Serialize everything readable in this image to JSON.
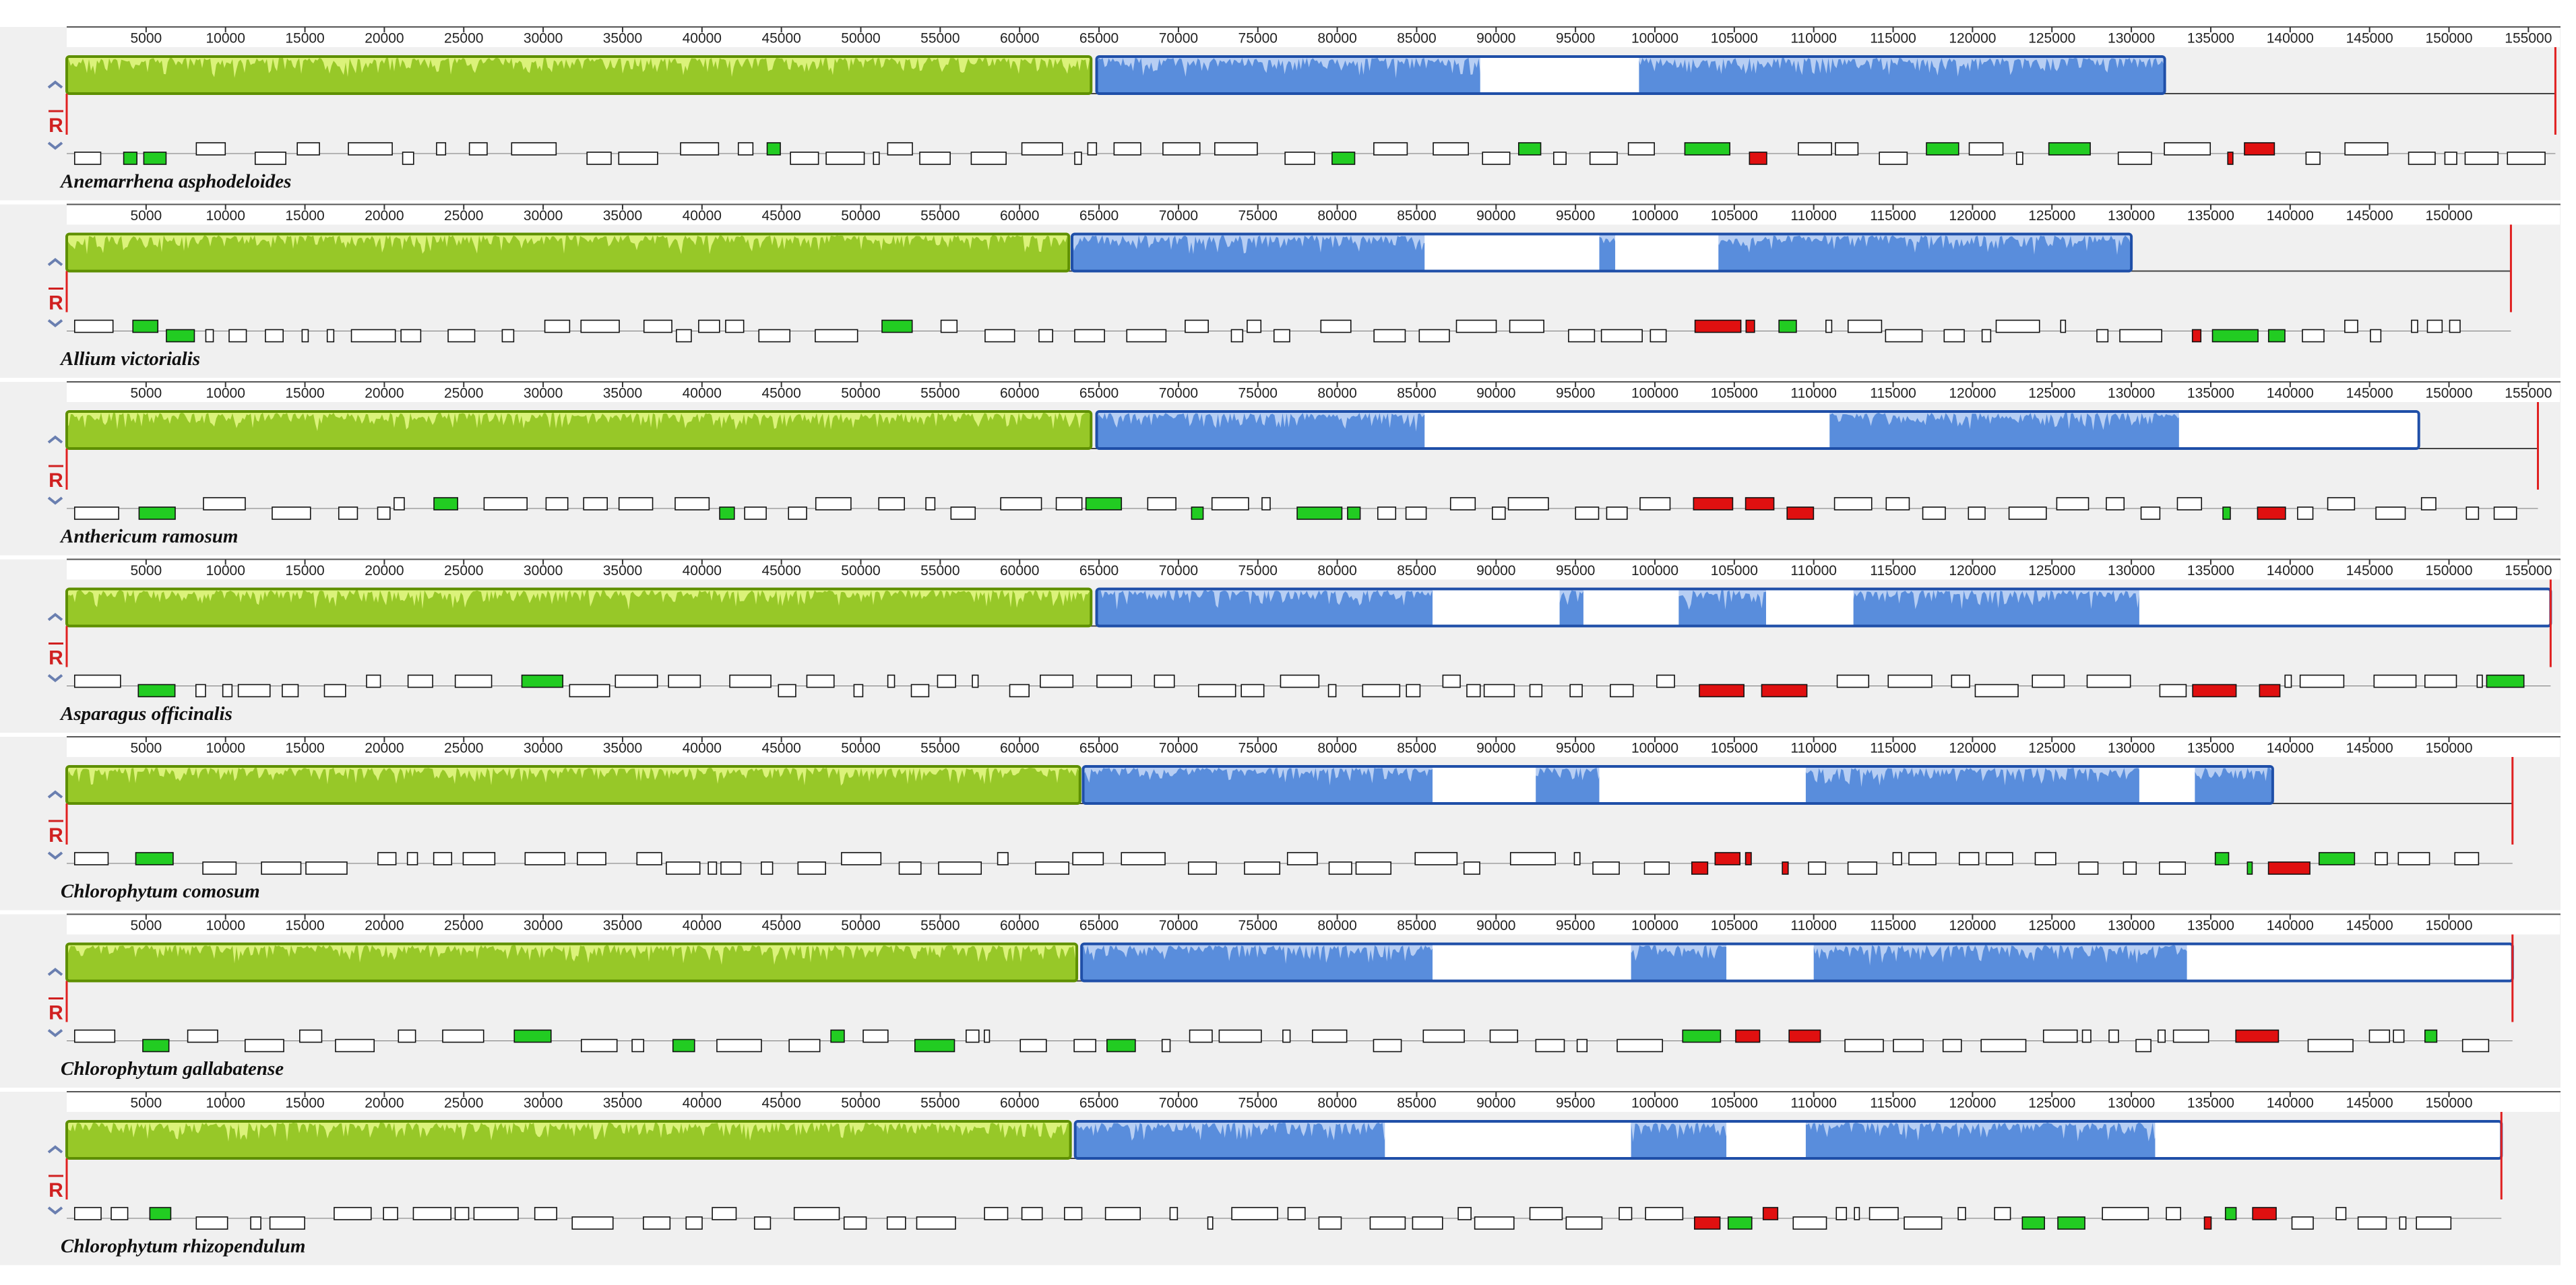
{
  "panels": [
    {
      "name": "Anemarrhena asphodeloides",
      "reverse_label": "R",
      "length": 156700,
      "ticks": [
        5000,
        10000,
        15000,
        20000,
        25000,
        30000,
        35000,
        40000,
        45000,
        50000,
        55000,
        60000,
        65000,
        70000,
        75000,
        80000,
        85000,
        90000,
        95000,
        100000,
        105000,
        110000,
        115000,
        120000,
        125000,
        130000,
        135000,
        140000,
        145000,
        150000,
        155000
      ],
      "blocks": [
        {
          "start": 0,
          "end": 64500,
          "color": "#8fc31f"
        },
        {
          "start": 64850,
          "end": 132100,
          "color": "#4f86d9"
        }
      ],
      "gaps": [
        [
          89000,
          99000
        ]
      ]
    },
    {
      "name": "Allium victorialis",
      "reverse_label": "R",
      "length": 153900,
      "ticks": [
        5000,
        10000,
        15000,
        20000,
        25000,
        30000,
        35000,
        40000,
        45000,
        50000,
        55000,
        60000,
        65000,
        70000,
        75000,
        80000,
        85000,
        90000,
        95000,
        100000,
        105000,
        110000,
        115000,
        120000,
        125000,
        130000,
        135000,
        140000,
        145000,
        150000
      ],
      "blocks": [
        {
          "start": 0,
          "end": 63100,
          "color": "#8fc31f"
        },
        {
          "start": 63300,
          "end": 130000,
          "color": "#4f86d9"
        }
      ],
      "gaps": [
        [
          85500,
          96500
        ],
        [
          97500,
          104000
        ]
      ]
    },
    {
      "name": "Anthericum ramosum",
      "reverse_label": "R",
      "length": 155600,
      "ticks": [
        5000,
        10000,
        15000,
        20000,
        25000,
        30000,
        35000,
        40000,
        45000,
        50000,
        55000,
        60000,
        65000,
        70000,
        75000,
        80000,
        85000,
        90000,
        95000,
        100000,
        105000,
        110000,
        115000,
        120000,
        125000,
        130000,
        135000,
        140000,
        145000,
        150000,
        155000
      ],
      "blocks": [
        {
          "start": 0,
          "end": 64500,
          "color": "#8fc31f"
        },
        {
          "start": 64850,
          "end": 148100,
          "color": "#4f86d9"
        }
      ],
      "gaps": [
        [
          85500,
          111000
        ],
        [
          133000,
          148100
        ]
      ]
    },
    {
      "name": "Asparagus officinalis",
      "reverse_label": "R",
      "length": 156400,
      "ticks": [
        5000,
        10000,
        15000,
        20000,
        25000,
        30000,
        35000,
        40000,
        45000,
        50000,
        55000,
        60000,
        65000,
        70000,
        75000,
        80000,
        85000,
        90000,
        95000,
        100000,
        105000,
        110000,
        115000,
        120000,
        125000,
        130000,
        135000,
        140000,
        145000,
        150000,
        155000
      ],
      "blocks": [
        {
          "start": 0,
          "end": 64500,
          "color": "#8fc31f"
        },
        {
          "start": 64850,
          "end": 156400,
          "color": "#4f86d9"
        }
      ],
      "gaps": [
        [
          86000,
          94000
        ],
        [
          95500,
          101500
        ],
        [
          107000,
          112500
        ],
        [
          130500,
          156400
        ]
      ]
    },
    {
      "name": "Chlorophytum comosum",
      "reverse_label": "R",
      "length": 154000,
      "ticks": [
        5000,
        10000,
        15000,
        20000,
        25000,
        30000,
        35000,
        40000,
        45000,
        50000,
        55000,
        60000,
        65000,
        70000,
        75000,
        80000,
        85000,
        90000,
        95000,
        100000,
        105000,
        110000,
        115000,
        120000,
        125000,
        130000,
        135000,
        140000,
        145000,
        150000
      ],
      "blocks": [
        {
          "start": 0,
          "end": 63800,
          "color": "#8fc31f"
        },
        {
          "start": 64000,
          "end": 138900,
          "color": "#4f86d9"
        }
      ],
      "gaps": [
        [
          86000,
          92500
        ],
        [
          96500,
          109500
        ],
        [
          130500,
          134000
        ]
      ]
    },
    {
      "name": "Chlorophytum gallabatense",
      "reverse_label": "R",
      "length": 154000,
      "ticks": [
        5000,
        10000,
        15000,
        20000,
        25000,
        30000,
        35000,
        40000,
        45000,
        50000,
        55000,
        60000,
        65000,
        70000,
        75000,
        80000,
        85000,
        90000,
        95000,
        100000,
        105000,
        110000,
        115000,
        120000,
        125000,
        130000,
        135000,
        140000,
        145000,
        150000
      ],
      "blocks": [
        {
          "start": 0,
          "end": 63600,
          "color": "#8fc31f"
        },
        {
          "start": 63900,
          "end": 154000,
          "color": "#4f86d9"
        }
      ],
      "gaps": [
        [
          86000,
          98500
        ],
        [
          104500,
          110000
        ],
        [
          133500,
          154000
        ]
      ]
    },
    {
      "name": "Chlorophytum rhizopendulum",
      "reverse_label": "R",
      "length": 153300,
      "ticks": [
        5000,
        10000,
        15000,
        20000,
        25000,
        30000,
        35000,
        40000,
        45000,
        50000,
        55000,
        60000,
        65000,
        70000,
        75000,
        80000,
        85000,
        90000,
        95000,
        100000,
        105000,
        110000,
        115000,
        120000,
        125000,
        130000,
        135000,
        140000,
        145000,
        150000
      ],
      "blocks": [
        {
          "start": 0,
          "end": 63200,
          "color": "#8fc31f"
        },
        {
          "start": 63500,
          "end": 153300,
          "color": "#4f86d9"
        }
      ],
      "gaps": [
        [
          83000,
          98500
        ],
        [
          104500,
          109500
        ],
        [
          131500,
          153300
        ]
      ]
    }
  ]
}
